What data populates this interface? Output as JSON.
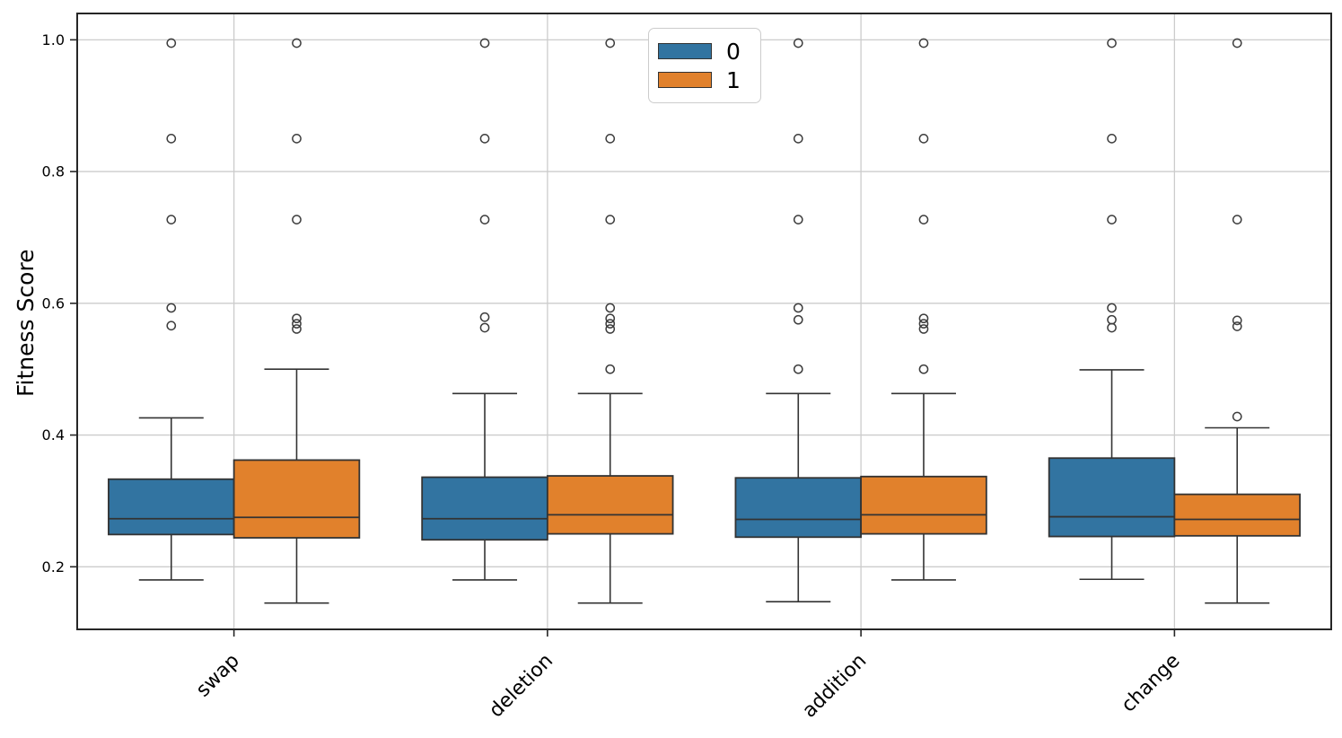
{
  "chart_data": {
    "type": "boxplot",
    "title": "",
    "xlabel": "",
    "ylabel": "Fitness Score",
    "categories": [
      "swap",
      "deletion",
      "addition",
      "change"
    ],
    "yticks": [
      1.0,
      0.8,
      0.6,
      0.4,
      0.2
    ],
    "ylim": [
      0.105,
      1.04
    ],
    "grid": true,
    "legend": {
      "position": "upper center-left",
      "entries": [
        {
          "label": "0",
          "color": "#3274a1"
        },
        {
          "label": "1",
          "color": "#e1812c"
        }
      ]
    },
    "series": [
      {
        "name": "0",
        "color": "#3274a1",
        "boxes": [
          {
            "category": "swap",
            "whislo": 0.18,
            "q1": 0.249,
            "med": 0.273,
            "q3": 0.333,
            "whishi": 0.426,
            "fliers": [
              0.995,
              0.85,
              0.727,
              0.593,
              0.566
            ]
          },
          {
            "category": "deletion",
            "whislo": 0.18,
            "q1": 0.241,
            "med": 0.273,
            "q3": 0.336,
            "whishi": 0.463,
            "fliers": [
              0.995,
              0.85,
              0.727,
              0.579,
              0.563
            ]
          },
          {
            "category": "addition",
            "whislo": 0.147,
            "q1": 0.245,
            "med": 0.272,
            "q3": 0.335,
            "whishi": 0.463,
            "fliers": [
              0.995,
              0.85,
              0.727,
              0.593,
              0.575,
              0.5
            ]
          },
          {
            "category": "change",
            "whislo": 0.181,
            "q1": 0.246,
            "med": 0.276,
            "q3": 0.365,
            "whishi": 0.499,
            "fliers": [
              0.995,
              0.85,
              0.727,
              0.593,
              0.575,
              0.563
            ]
          }
        ]
      },
      {
        "name": "1",
        "color": "#e1812c",
        "boxes": [
          {
            "category": "swap",
            "whislo": 0.145,
            "q1": 0.244,
            "med": 0.275,
            "q3": 0.362,
            "whishi": 0.5,
            "fliers": [
              0.995,
              0.85,
              0.727,
              0.577,
              0.569,
              0.561
            ]
          },
          {
            "category": "deletion",
            "whislo": 0.145,
            "q1": 0.25,
            "med": 0.279,
            "q3": 0.338,
            "whishi": 0.463,
            "fliers": [
              0.995,
              0.85,
              0.727,
              0.593,
              0.577,
              0.569,
              0.561,
              0.5
            ]
          },
          {
            "category": "addition",
            "whislo": 0.18,
            "q1": 0.25,
            "med": 0.279,
            "q3": 0.337,
            "whishi": 0.463,
            "fliers": [
              0.995,
              0.85,
              0.727,
              0.577,
              0.569,
              0.561,
              0.5
            ]
          },
          {
            "category": "change",
            "whislo": 0.145,
            "q1": 0.247,
            "med": 0.272,
            "q3": 0.31,
            "whishi": 0.411,
            "fliers": [
              0.995,
              0.727,
              0.574,
              0.565,
              0.428
            ]
          }
        ]
      }
    ]
  },
  "style": {
    "grid_color": "#cccccc",
    "box_edge_color": "#333333",
    "flier_color": "#3d3d3d",
    "frame_color": "#262626",
    "text_color": "#000000",
    "legend_border_color": "#cccccc",
    "background": "#ffffff"
  }
}
